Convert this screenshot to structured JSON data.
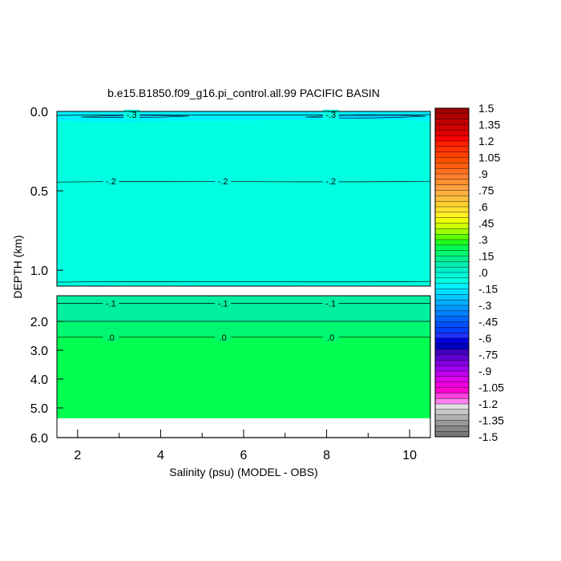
{
  "chart_data": {
    "type": "heatmap",
    "title": "b.e15.B1850.f09_g16.pi_control.all.99 PACIFIC BASIN",
    "xlabel": "Salinity (psu) (MODEL - OBS)",
    "ylabel": "DEPTH (km)",
    "x_ticks": [
      "2",
      "4",
      "6",
      "8",
      "10"
    ],
    "upper_panel": {
      "ylim": [
        0.0,
        1.1
      ],
      "y_ticks": [
        "0.0",
        "0.5",
        "1.0"
      ],
      "fill_color": "#00ffe0",
      "contours": [
        {
          "level": "-.3",
          "depth": 0.02,
          "labels": [
            {
              "x": 3.3,
              "text": "-.3"
            },
            {
              "x": 8.1,
              "text": "-.3"
            }
          ]
        },
        {
          "level": "-.2",
          "depth": 0.44,
          "labels": [
            {
              "x": 2.8,
              "text": "-.2"
            },
            {
              "x": 5.5,
              "text": "-.2"
            },
            {
              "x": 8.1,
              "text": "-.2"
            }
          ]
        },
        {
          "level": "",
          "depth": 1.07,
          "labels": []
        }
      ]
    },
    "lower_panel": {
      "ylim": [
        1.5,
        6.0
      ],
      "y_ticks": [
        "2.0",
        "3.0",
        "4.0",
        "5.0",
        "6.0"
      ],
      "bands": [
        {
          "from": 1.5,
          "to": 2.0,
          "color": "#00f0a0"
        },
        {
          "from": 2.0,
          "to": 2.55,
          "color": "#00f870"
        },
        {
          "from": 2.55,
          "to": 5.35,
          "color": "#00ff50"
        }
      ],
      "no_data_below": 5.35,
      "contours": [
        {
          "level": "-.1",
          "depth": 1.65,
          "labels": [
            {
              "x": 2.8,
              "text": "-.1"
            },
            {
              "x": 5.5,
              "text": "-.1"
            },
            {
              "x": 8.1,
              "text": "-.1"
            }
          ]
        },
        {
          "level": "",
          "depth": 2.0,
          "labels": []
        },
        {
          "level": ".0",
          "depth": 2.55,
          "labels": [
            {
              "x": 2.8,
              "text": ".0"
            },
            {
              "x": 5.5,
              "text": ".0"
            },
            {
              "x": 8.1,
              "text": ".0"
            }
          ]
        }
      ]
    },
    "xlim": [
      1.5,
      10.5
    ],
    "colorbar": {
      "range": [
        -1.5,
        1.5
      ],
      "step": 0.05,
      "labels": [
        "1.5",
        "1.35",
        "1.2",
        "1.05",
        ".9",
        ".75",
        ".6",
        ".45",
        ".3",
        ".15",
        ".0",
        "-.15",
        "-.3",
        "-.45",
        "-.6",
        "-.75",
        "-.9",
        "-1.05",
        "-1.2",
        "-1.35",
        "-1.5"
      ],
      "colors_top_to_bottom": [
        "#a00000",
        "#b00000",
        "#c00000",
        "#d00000",
        "#e00000",
        "#ff0000",
        "#ff2000",
        "#ff3000",
        "#ff4000",
        "#ff5000",
        "#ff6010",
        "#ff7020",
        "#ff8030",
        "#ff9030",
        "#ffa040",
        "#ffb040",
        "#ffc040",
        "#ffd030",
        "#ffe030",
        "#fff020",
        "#f0ff00",
        "#d0ff00",
        "#a0ff00",
        "#60ff00",
        "#20ff20",
        "#00ff50",
        "#00f870",
        "#00f090",
        "#00f0b0",
        "#00f0c8",
        "#00f8d8",
        "#00ffe0",
        "#00f0ff",
        "#00e0ff",
        "#00c8ff",
        "#00b0ff",
        "#0098ff",
        "#0080ff",
        "#0068ff",
        "#0050ff",
        "#0040ff",
        "#2030ff",
        "#0000e0",
        "#0000c0",
        "#4000c0",
        "#6000d0",
        "#8000e0",
        "#a000f0",
        "#c000f0",
        "#e000f0",
        "#f000e0",
        "#ff00d0",
        "#ff40e0",
        "#ff80f0",
        "#e0e0e0",
        "#c8c8c8",
        "#b0b0b0",
        "#989898",
        "#888888",
        "#787878"
      ]
    }
  }
}
